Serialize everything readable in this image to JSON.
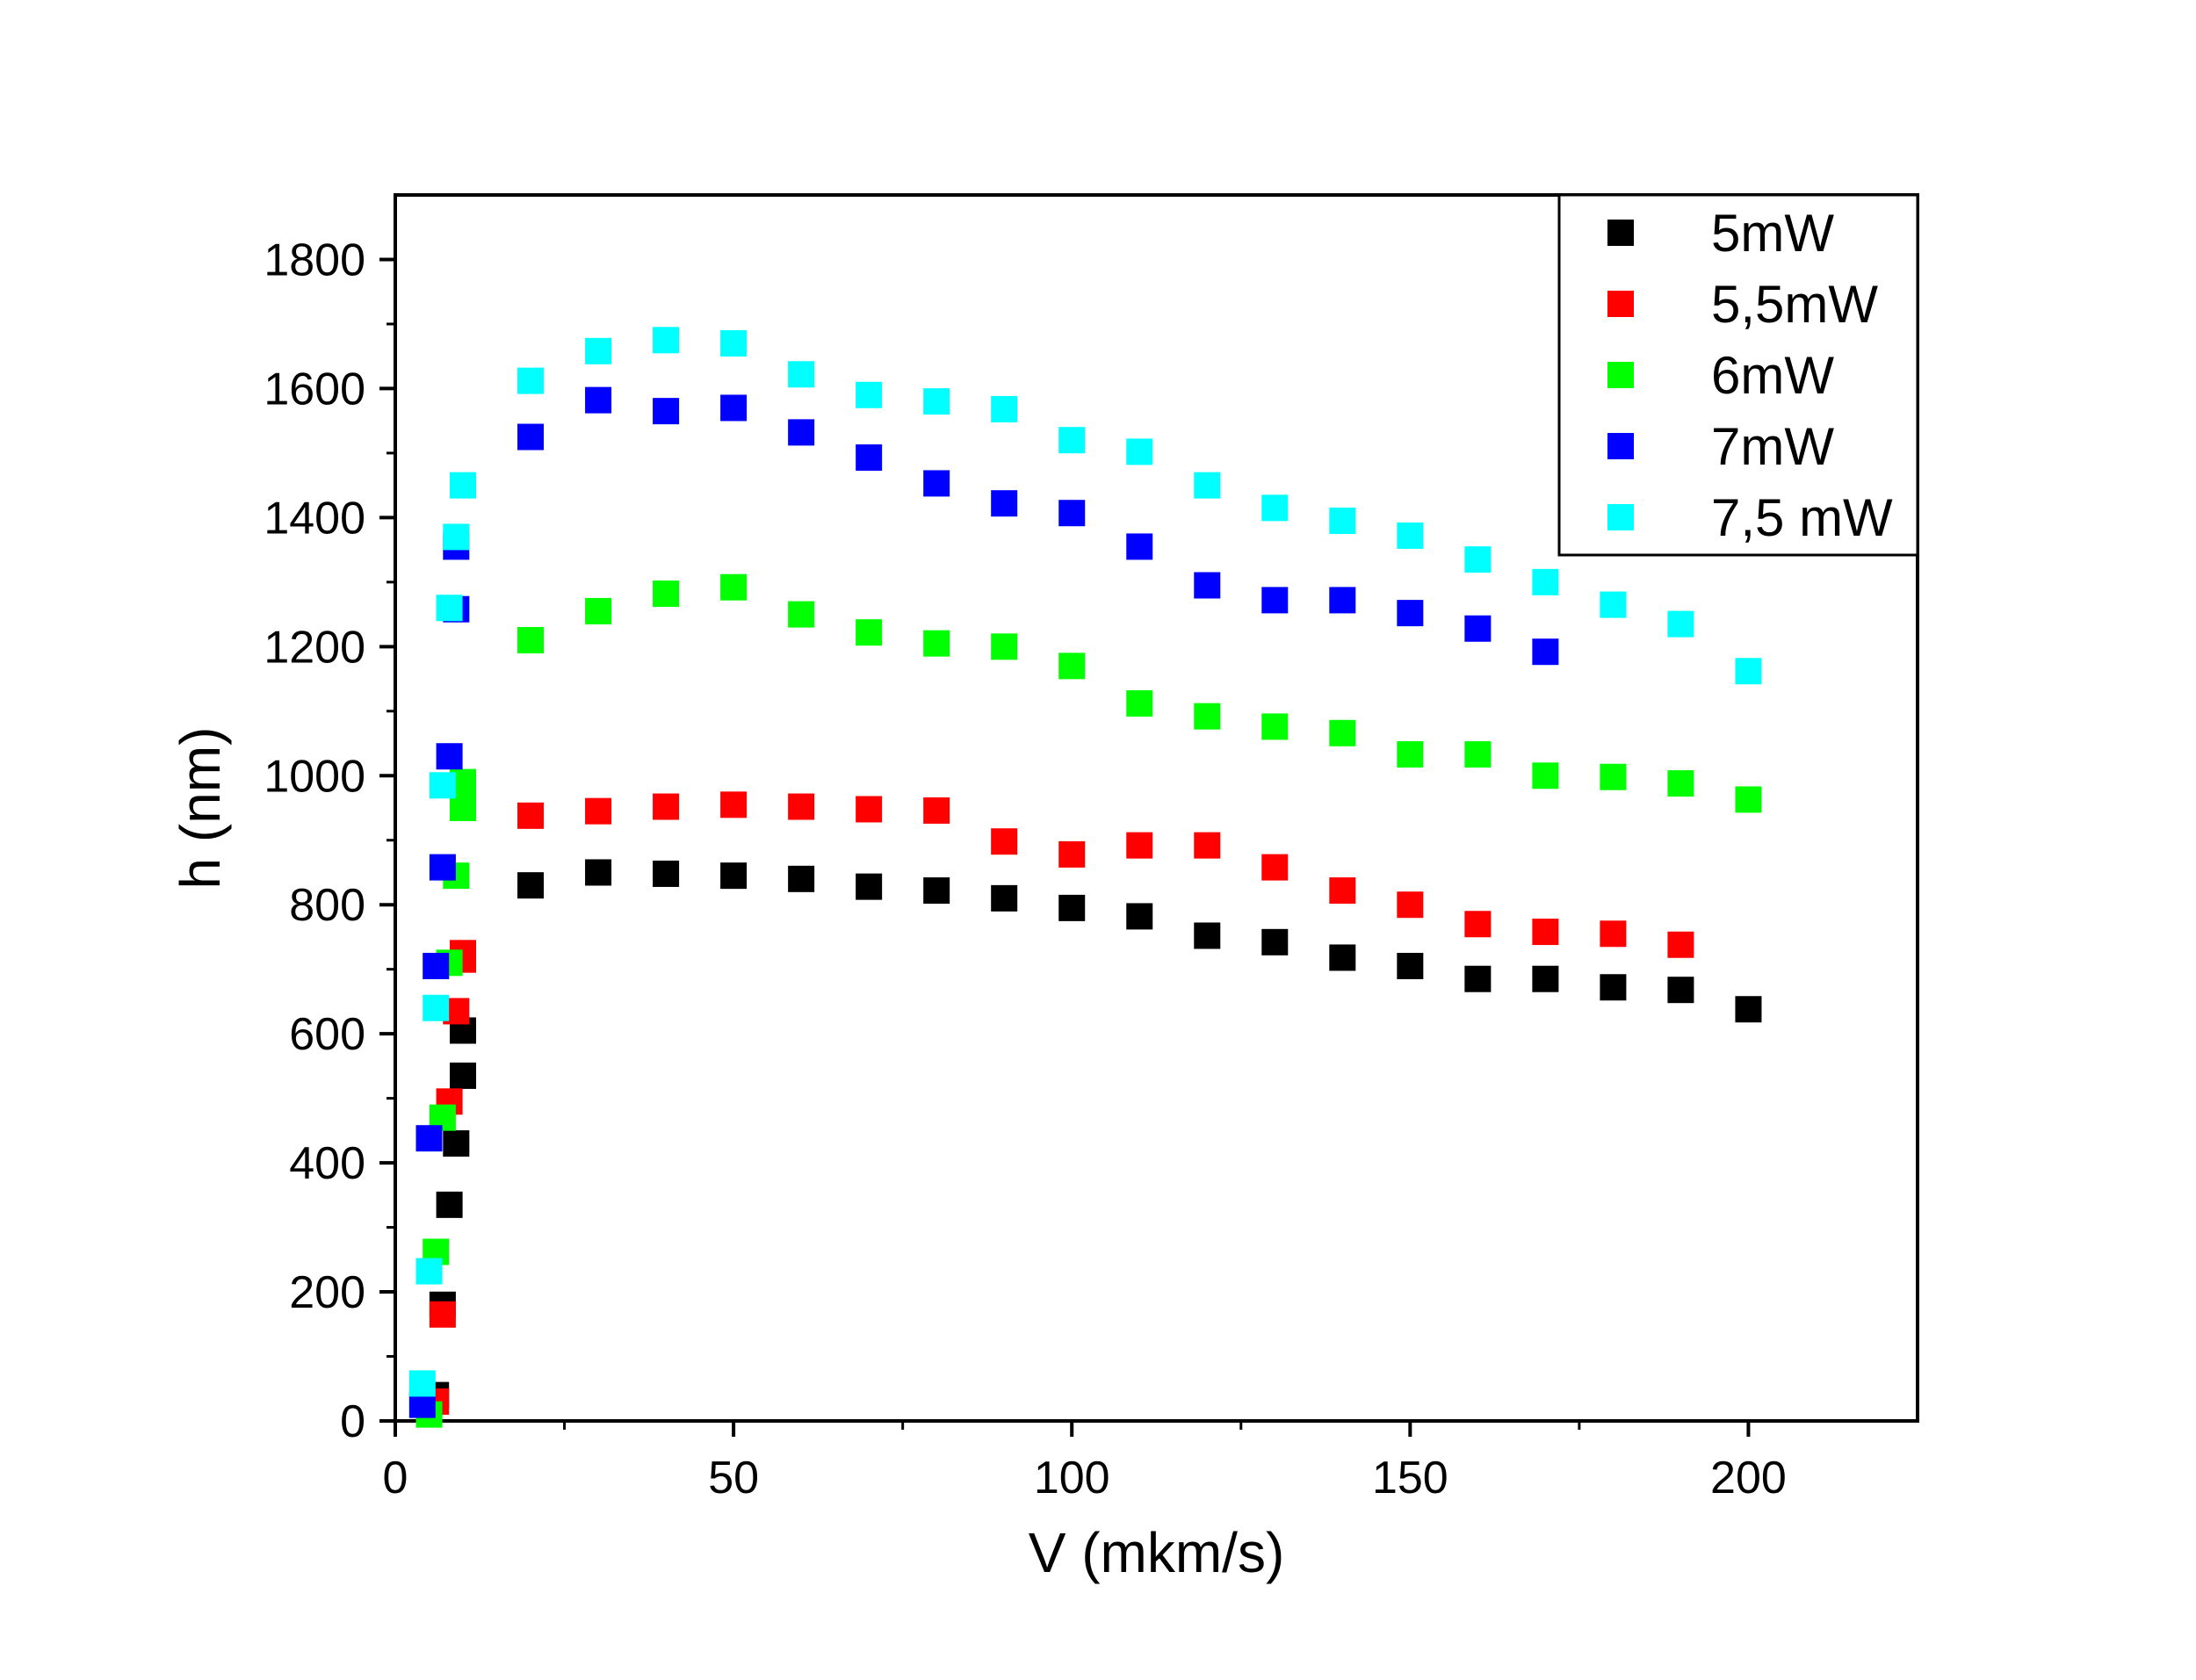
{
  "chart_data": {
    "type": "scatter",
    "xlabel": "V (mkm/s)",
    "ylabel": "h (nm)",
    "xlim": [
      0,
      225
    ],
    "ylim": [
      0,
      1900
    ],
    "xticks": [
      0,
      50,
      100,
      150,
      200
    ],
    "yticks": [
      0,
      200,
      400,
      600,
      800,
      1000,
      1200,
      1400,
      1600,
      1800
    ],
    "legend_position": "top-right",
    "grid": false,
    "series": [
      {
        "name": "5mW",
        "color": "#000000",
        "points": [
          [
            6,
            40
          ],
          [
            7,
            180
          ],
          [
            8,
            335
          ],
          [
            9,
            430
          ],
          [
            10,
            535
          ],
          [
            10,
            605
          ],
          [
            20,
            830
          ],
          [
            30,
            850
          ],
          [
            40,
            848
          ],
          [
            50,
            845
          ],
          [
            60,
            840
          ],
          [
            70,
            828
          ],
          [
            80,
            822
          ],
          [
            90,
            810
          ],
          [
            100,
            795
          ],
          [
            110,
            782
          ],
          [
            120,
            752
          ],
          [
            130,
            742
          ],
          [
            140,
            718
          ],
          [
            150,
            705
          ],
          [
            160,
            685
          ],
          [
            170,
            685
          ],
          [
            180,
            672
          ],
          [
            190,
            668
          ],
          [
            200,
            638
          ]
        ]
      },
      {
        "name": "5,5mW",
        "color": "#ff0000",
        "points": [
          [
            6,
            30
          ],
          [
            7,
            165
          ],
          [
            8,
            495
          ],
          [
            9,
            635
          ],
          [
            10,
            715
          ],
          [
            10,
            725
          ],
          [
            20,
            938
          ],
          [
            30,
            945
          ],
          [
            40,
            952
          ],
          [
            50,
            955
          ],
          [
            60,
            952
          ],
          [
            70,
            948
          ],
          [
            80,
            946
          ],
          [
            90,
            898
          ],
          [
            100,
            878
          ],
          [
            110,
            892
          ],
          [
            120,
            892
          ],
          [
            130,
            858
          ],
          [
            140,
            822
          ],
          [
            150,
            800
          ],
          [
            160,
            770
          ],
          [
            170,
            758
          ],
          [
            180,
            755
          ],
          [
            190,
            738
          ]
        ]
      },
      {
        "name": "6mW",
        "color": "#00ff00",
        "points": [
          [
            5,
            10
          ],
          [
            6,
            262
          ],
          [
            7,
            470
          ],
          [
            8,
            710
          ],
          [
            9,
            845
          ],
          [
            10,
            950
          ],
          [
            10,
            990
          ],
          [
            20,
            1210
          ],
          [
            30,
            1255
          ],
          [
            40,
            1282
          ],
          [
            50,
            1292
          ],
          [
            60,
            1250
          ],
          [
            70,
            1222
          ],
          [
            80,
            1205
          ],
          [
            90,
            1200
          ],
          [
            100,
            1170
          ],
          [
            110,
            1112
          ],
          [
            120,
            1092
          ],
          [
            130,
            1076
          ],
          [
            140,
            1066
          ],
          [
            150,
            1033
          ],
          [
            160,
            1033
          ],
          [
            170,
            1000
          ],
          [
            180,
            998
          ],
          [
            190,
            988
          ],
          [
            200,
            963
          ]
        ]
      },
      {
        "name": "7mW",
        "color": "#0000ff",
        "points": [
          [
            4,
            25
          ],
          [
            5,
            438
          ],
          [
            6,
            705
          ],
          [
            7,
            858
          ],
          [
            8,
            1030
          ],
          [
            9,
            1258
          ],
          [
            9,
            1355
          ],
          [
            20,
            1525
          ],
          [
            30,
            1582
          ],
          [
            40,
            1565
          ],
          [
            50,
            1570
          ],
          [
            60,
            1532
          ],
          [
            70,
            1493
          ],
          [
            80,
            1453
          ],
          [
            90,
            1422
          ],
          [
            100,
            1407
          ],
          [
            110,
            1355
          ],
          [
            120,
            1295
          ],
          [
            130,
            1272
          ],
          [
            140,
            1272
          ],
          [
            150,
            1252
          ],
          [
            160,
            1228
          ],
          [
            170,
            1192
          ]
        ]
      },
      {
        "name": "7,5 mW",
        "color": "#00ffff",
        "points": [
          [
            4,
            58
          ],
          [
            5,
            232
          ],
          [
            6,
            640
          ],
          [
            7,
            985
          ],
          [
            8,
            1260
          ],
          [
            9,
            1370
          ],
          [
            10,
            1450
          ],
          [
            20,
            1612
          ],
          [
            30,
            1658
          ],
          [
            40,
            1675
          ],
          [
            50,
            1670
          ],
          [
            60,
            1622
          ],
          [
            70,
            1590
          ],
          [
            80,
            1580
          ],
          [
            90,
            1568
          ],
          [
            100,
            1520
          ],
          [
            110,
            1502
          ],
          [
            120,
            1450
          ],
          [
            130,
            1415
          ],
          [
            140,
            1395
          ],
          [
            150,
            1372
          ],
          [
            160,
            1335
          ],
          [
            170,
            1300
          ],
          [
            180,
            1265
          ],
          [
            190,
            1235
          ],
          [
            200,
            1162
          ]
        ]
      }
    ]
  }
}
